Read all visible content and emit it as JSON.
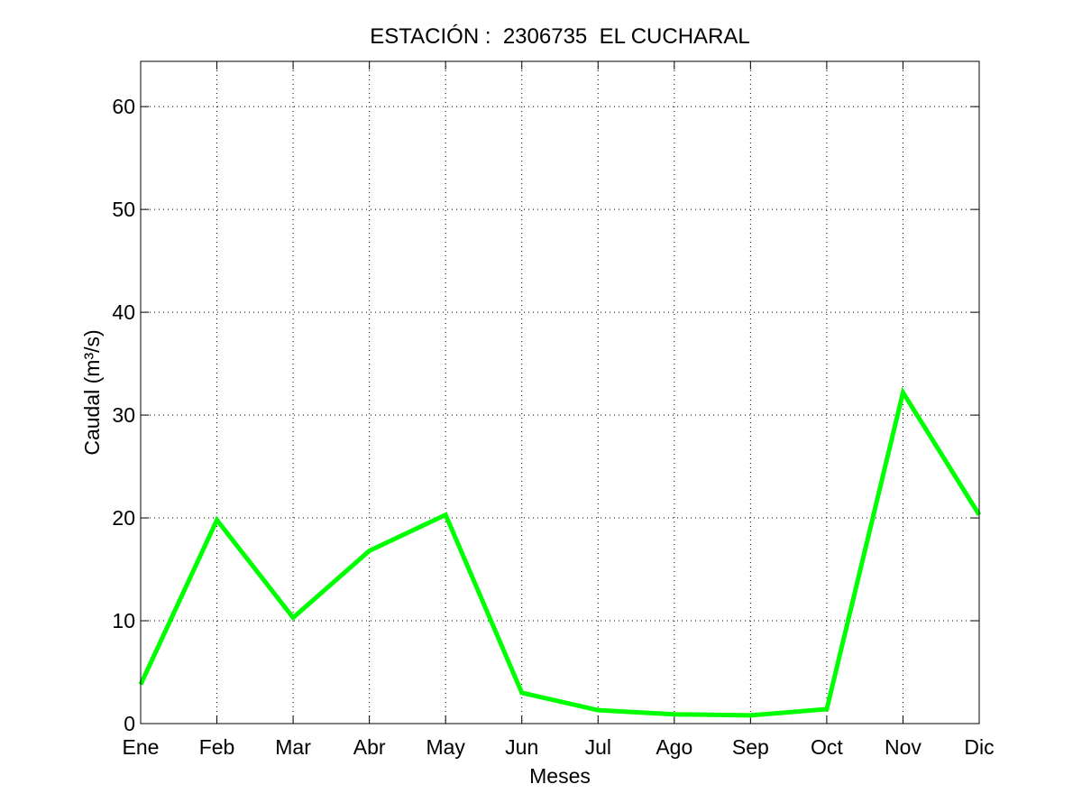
{
  "chart_data": {
    "type": "line",
    "title": "ESTACIÓN :  2306735  EL CUCHARAL",
    "xlabel": "Meses",
    "ylabel": "Caudal (m³/s)",
    "categories": [
      "Ene",
      "Feb",
      "Mar",
      "Abr",
      "May",
      "Jun",
      "Jul",
      "Ago",
      "Sep",
      "Oct",
      "Nov",
      "Dic"
    ],
    "yticks": [
      "0",
      "10",
      "20",
      "30",
      "40",
      "50",
      "60"
    ],
    "ylim": [
      0,
      64.4
    ],
    "grid": true,
    "series": [
      {
        "values": [
          3.8,
          19.8,
          10.3,
          16.8,
          20.3,
          3.0,
          1.3,
          0.9,
          0.8,
          1.4,
          32.2,
          20.3
        ],
        "color": "#00ff00"
      }
    ]
  }
}
